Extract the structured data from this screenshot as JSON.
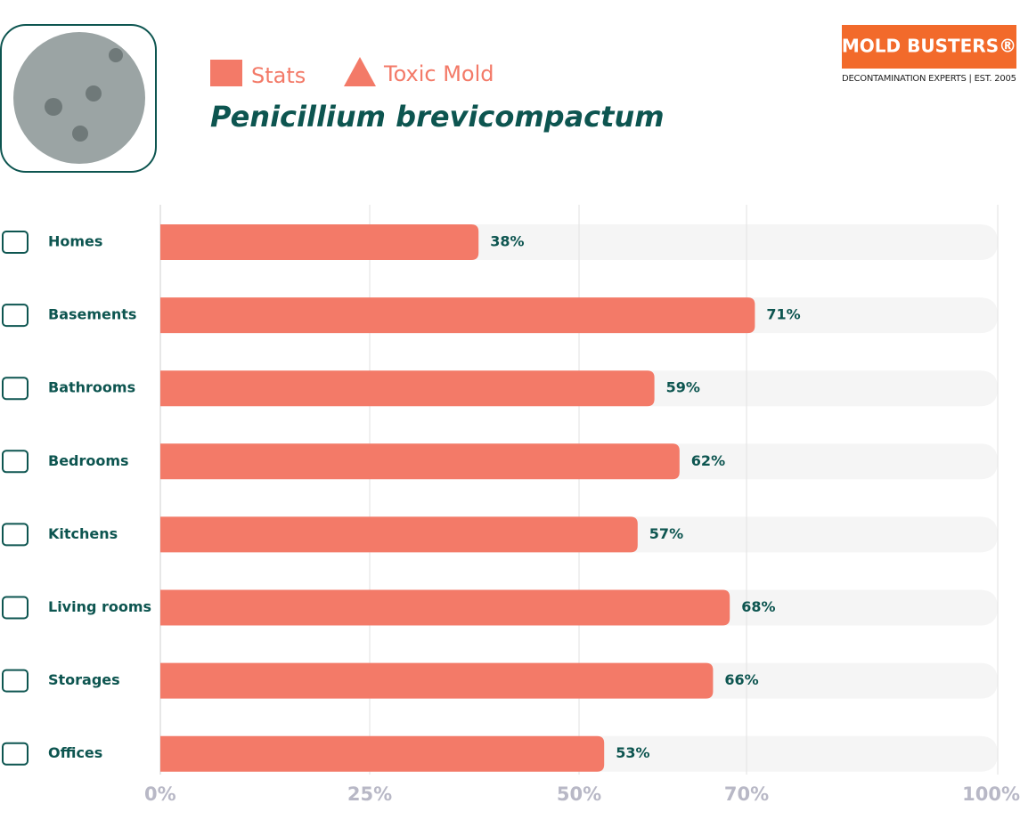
{
  "chart_data": {
    "type": "bar",
    "orientation": "horizontal",
    "tags": [
      "Stats",
      "Toxic Mold"
    ],
    "title": "Penicillium brevicompactum",
    "brand": "MOLD BUSTERS®",
    "tagline": "DECONTAMINATION EXPERTS | EST. 2005",
    "categories": [
      "Homes",
      "Basements",
      "Bathrooms",
      "Bedrooms",
      "Kitchens",
      "Living rooms",
      "Storages",
      "Offices"
    ],
    "values": [
      38,
      71,
      59,
      62,
      57,
      68,
      66,
      53
    ],
    "value_labels": [
      "38%",
      "71%",
      "59%",
      "62%",
      "57%",
      "68%",
      "66%",
      "53%"
    ],
    "color": "#f37a68",
    "xlim": [
      0,
      100
    ],
    "xticks": [
      {
        "value": 0,
        "label": "0%"
      },
      {
        "value": 25,
        "label": "25%"
      },
      {
        "value": 50,
        "label": "50%"
      },
      {
        "value": 70,
        "label": "70%"
      },
      {
        "value": 100,
        "label": "100%"
      }
    ],
    "grid": true
  }
}
